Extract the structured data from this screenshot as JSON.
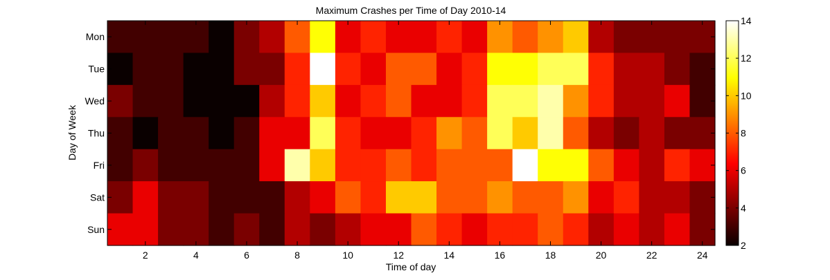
{
  "chart_data": {
    "type": "heatmap",
    "title": "Maximum Crashes per Time of Day 2010-14",
    "xlabel": "Time of day",
    "ylabel": "Day of Week",
    "x": [
      1,
      2,
      3,
      4,
      5,
      6,
      7,
      8,
      9,
      10,
      11,
      12,
      13,
      14,
      15,
      16,
      17,
      18,
      19,
      20,
      21,
      22,
      23,
      24
    ],
    "y_categories": [
      "Mon",
      "Tue",
      "Wed",
      "Thu",
      "Fri",
      "Sat",
      "Sun"
    ],
    "xlim": [
      0.5,
      24.5
    ],
    "x_ticks": [
      2,
      4,
      6,
      8,
      10,
      12,
      14,
      16,
      18,
      20,
      22,
      24
    ],
    "values": [
      [
        3,
        3,
        3,
        3,
        2,
        4,
        5,
        8,
        11,
        6,
        7,
        6,
        6,
        7,
        6,
        9,
        8,
        9,
        10,
        5,
        4,
        4,
        4,
        4
      ],
      [
        2,
        3,
        3,
        2,
        2,
        4,
        4,
        7,
        14,
        7,
        6,
        8,
        8,
        6,
        7,
        11,
        11,
        12,
        12,
        7,
        5,
        5,
        4,
        3
      ],
      [
        4,
        3,
        3,
        2,
        2,
        2,
        5,
        7,
        10,
        6,
        7,
        8,
        6,
        6,
        7,
        12,
        12,
        13,
        9,
        7,
        5,
        5,
        6,
        3
      ],
      [
        3,
        2,
        3,
        3,
        2,
        3,
        6,
        6,
        12,
        7,
        6,
        6,
        7,
        9,
        8,
        12,
        10,
        13,
        8,
        5,
        4,
        5,
        4,
        4
      ],
      [
        3,
        4,
        3,
        3,
        3,
        3,
        6,
        13,
        10,
        7,
        7,
        8,
        7,
        8,
        8,
        8,
        14,
        11,
        11,
        8,
        6,
        5,
        7,
        6
      ],
      [
        4,
        6,
        4,
        4,
        3,
        3,
        3,
        5,
        6,
        8,
        7,
        10,
        10,
        8,
        8,
        9,
        8,
        8,
        9,
        6,
        7,
        5,
        5,
        4
      ],
      [
        6,
        6,
        4,
        4,
        3,
        4,
        3,
        5,
        4,
        5,
        6,
        6,
        8,
        7,
        6,
        7,
        7,
        8,
        7,
        5,
        6,
        5,
        6,
        4
      ]
    ],
    "colormap": "hot",
    "colorbar": {
      "min": 2,
      "max": 14,
      "ticks": [
        2,
        4,
        6,
        8,
        10,
        12,
        14
      ]
    },
    "grid": false,
    "legend": "none"
  }
}
